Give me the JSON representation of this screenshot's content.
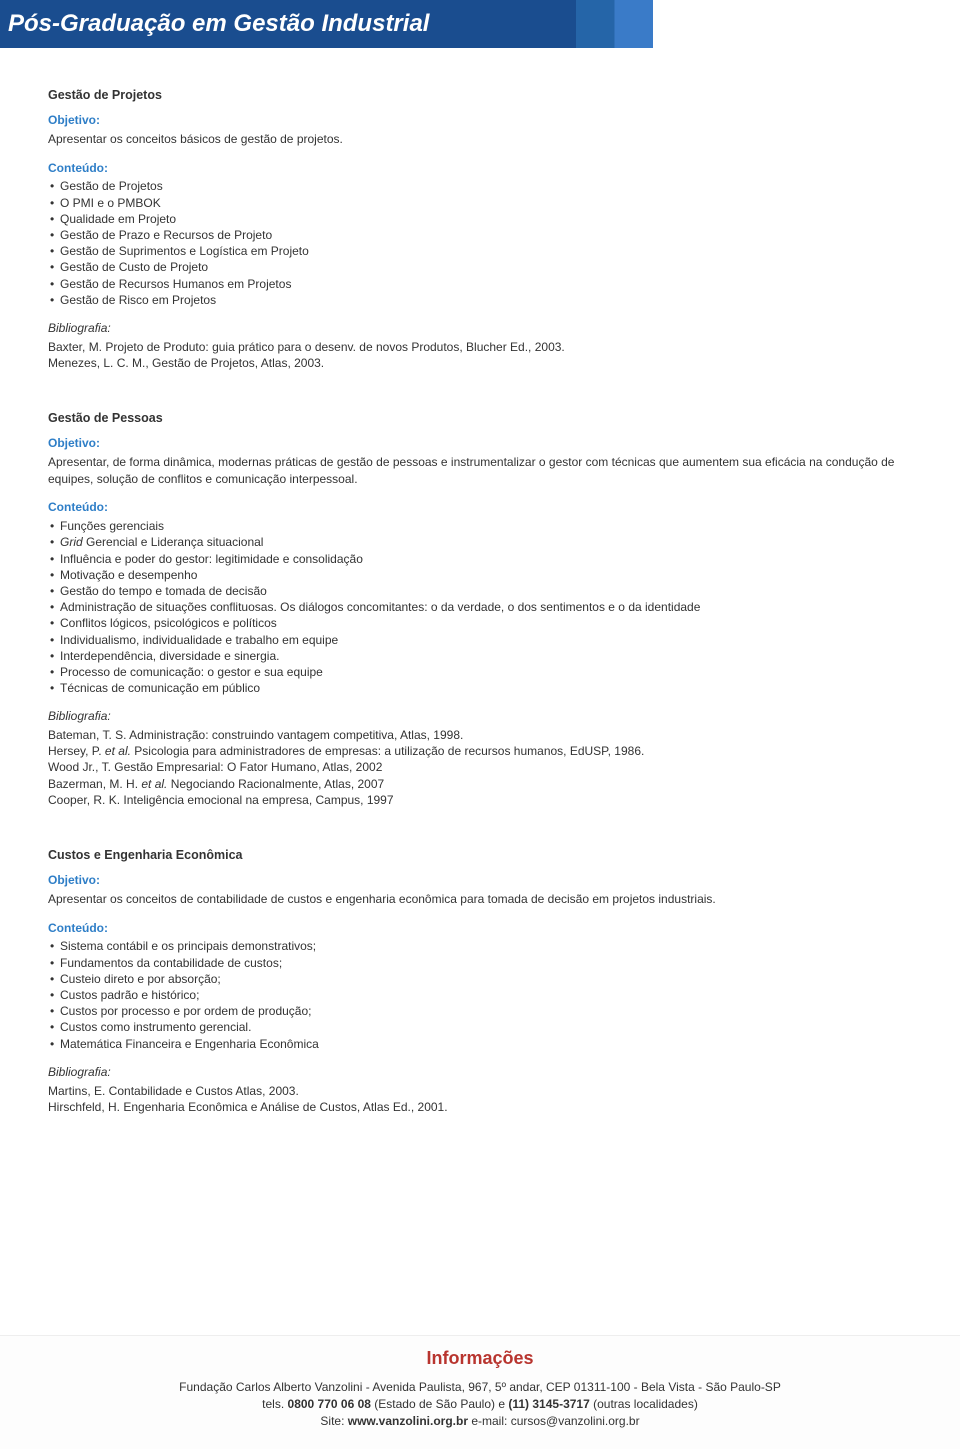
{
  "header": {
    "title": "Pós-Graduação em Gestão Industrial",
    "bg_color": "#1a4d8f",
    "text_color": "#ffffff"
  },
  "colors": {
    "label_blue": "#2e7ec7",
    "footer_title": "#b8352f",
    "text": "#333333"
  },
  "sections": [
    {
      "title": "Gestão de Projetos",
      "objetivo_label": "Objetivo:",
      "objetivo_text": "Apresentar os conceitos básicos de gestão de projetos.",
      "conteudo_label": "Conteúdo:",
      "conteudo_items": [
        "Gestão de Projetos",
        "O PMI e o PMBOK",
        "Qualidade em Projeto",
        "Gestão de Prazo e Recursos de Projeto",
        "Gestão de Suprimentos e Logística em Projeto",
        "Gestão de Custo de Projeto",
        "Gestão de Recursos Humanos em Projetos",
        "Gestão de Risco em Projetos"
      ],
      "bibliografia_label": "Bibliografia:",
      "bibliografia_lines": [
        "Baxter, M. Projeto de Produto: guia prático para o desenv. de novos Produtos, Blucher Ed., 2003.",
        "Menezes, L. C. M., Gestão de Projetos, Atlas, 2003."
      ]
    },
    {
      "title": "Gestão de Pessoas",
      "objetivo_label": "Objetivo:",
      "objetivo_text": "Apresentar, de forma dinâmica, modernas práticas de gestão de pessoas e instrumentalizar o gestor com técnicas que aumentem sua eficácia na condução de equipes, solução de conflitos e comunicação interpessoal.",
      "conteudo_label": "Conteúdo:",
      "conteudo_items": [
        "Funções gerenciais",
        "Grid Gerencial e Liderança situacional",
        "Influência e poder do gestor: legitimidade e consolidação",
        "Motivação e desempenho",
        "Gestão do tempo e tomada de decisão",
        "Administração de situações conflituosas. Os diálogos concomitantes: o da verdade, o dos sentimentos e o da identidade",
        "Conflitos lógicos, psicológicos e políticos",
        "Individualismo, individualidade e trabalho em equipe",
        "Interdependência, diversidade e sinergia.",
        "Processo de comunicação: o gestor e sua equipe",
        "Técnicas de comunicação em público"
      ],
      "bibliografia_label": "Bibliografia:",
      "bibliografia_lines": [
        "Bateman, T. S. Administração: construindo vantagem competitiva, Atlas, 1998.",
        "Hersey, P. et al. Psicologia para administradores de empresas: a utilização de recursos humanos, EdUSP, 1986.",
        "Wood Jr., T. Gestão Empresarial: O Fator Humano, Atlas, 2002",
        "Bazerman, M. H. et al. Negociando Racionalmente, Atlas, 2007",
        "Cooper, R. K. Inteligência emocional na empresa, Campus, 1997"
      ]
    },
    {
      "title": "Custos e Engenharia Econômica",
      "objetivo_label": "Objetivo:",
      "objetivo_text": "Apresentar os conceitos de contabilidade de custos e engenharia econômica para tomada de decisão em projetos industriais.",
      "conteudo_label": "Conteúdo:",
      "conteudo_items": [
        "Sistema contábil e os principais demonstrativos;",
        "Fundamentos da contabilidade de custos;",
        "Custeio direto e por absorção;",
        "Custos padrão e histórico;",
        "Custos por processo e por ordem de produção;",
        "Custos como instrumento gerencial.",
        "Matemática Financeira e Engenharia Econômica"
      ],
      "bibliografia_label": "Bibliografia:",
      "bibliografia_lines": [
        "Martins, E. Contabilidade e Custos Atlas, 2003.",
        "Hirschfeld, H. Engenharia Econômica e Análise de Custos, Atlas Ed., 2001."
      ]
    }
  ],
  "footer": {
    "title": "Informações",
    "line1_pre": "Fundação Carlos Alberto Vanzolini - Avenida Paulista, 967, 5º andar, CEP 01311-100 - Bela Vista - São Paulo-SP",
    "line2_pre": "tels. ",
    "line2_phone1": "0800 770 06 08",
    "line2_mid": " (Estado de São Paulo) e ",
    "line2_phone2": "(11) 3145-3717",
    "line2_post": " (outras localidades)",
    "line3_pre": "Site: ",
    "line3_site": "www.vanzolini.org.br",
    "line3_mid": "  e-mail: ",
    "line3_email": "cursos@vanzolini.org.br"
  }
}
